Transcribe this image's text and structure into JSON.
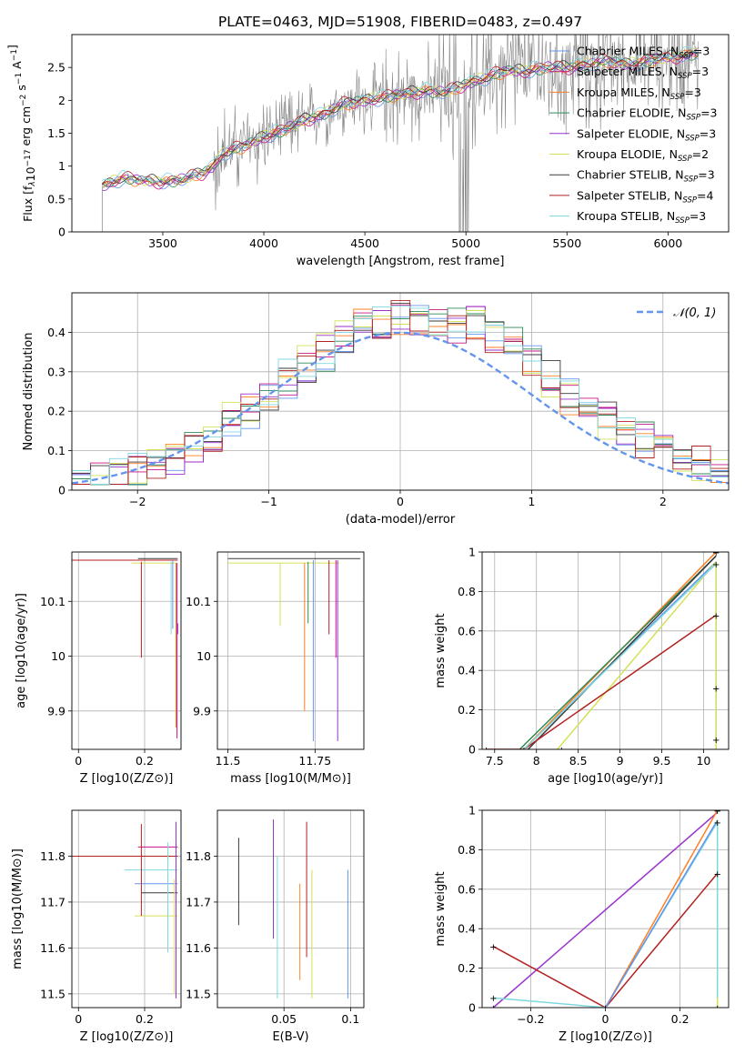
{
  "figure_title": "PLATE=0463, MJD=51908, FIBERID=0483, z=0.497",
  "colors": {
    "Chabrier MILES": "#6495ed",
    "Salpeter MILES": "#c71585",
    "Kroupa MILES": "#ff7f24",
    "Chabrier ELODIE": "#2e8b57",
    "Salpeter ELODIE": "#9932cc",
    "Kroupa ELODIE": "#d4e157",
    "Chabrier STELIB": "#3a3a3a",
    "Salpeter STELIB": "#b22222",
    "Kroupa STELIB": "#7fd8e0",
    "gaussian": "#6495ed",
    "data": "#808080"
  },
  "chart_data": [
    {
      "id": "spectrum",
      "type": "line",
      "title": "PLATE=0463, MJD=51908, FIBERID=0483, z=0.497",
      "xlabel": "wavelength [Angstrom, rest frame]",
      "ylabel": "Flux [f_λ 10^-17 erg cm^-2 s^-1 A^-1]",
      "xlim": [
        3050,
        6300
      ],
      "ylim": [
        0,
        3.0
      ],
      "xticks": [
        3500,
        4000,
        4500,
        5000,
        5500,
        6000
      ],
      "yticks": [
        0.0,
        0.5,
        1.0,
        1.5,
        2.0,
        2.5
      ],
      "legend_position": "upper right",
      "legend": [
        {
          "model": "Chabrier MILES",
          "nssp": "3"
        },
        {
          "model": "Salpeter MILES",
          "nssp": "3"
        },
        {
          "model": "Kroupa MILES",
          "nssp": "3"
        },
        {
          "model": "Chabrier ELODIE",
          "nssp": "3"
        },
        {
          "model": "Salpeter ELODIE",
          "nssp": "3"
        },
        {
          "model": "Kroupa ELODIE",
          "nssp": "2"
        },
        {
          "model": "Chabrier STELIB",
          "nssp": "3"
        },
        {
          "model": "Salpeter STELIB",
          "nssp": "4"
        },
        {
          "model": "Kroupa STELIB",
          "nssp": "3"
        }
      ],
      "nssp_label": "N_SSP",
      "series_continuum": {
        "x": [
          3200,
          3300,
          3400,
          3500,
          3600,
          3700,
          3750,
          3800,
          3900,
          4000,
          4100,
          4200,
          4300,
          4400,
          4500,
          4600,
          4700,
          4800,
          4900,
          5000,
          5100,
          5200,
          5300,
          5400,
          5500,
          5600,
          5700,
          5800,
          5900,
          6000,
          6100,
          6150
        ],
        "y": [
          0.7,
          0.82,
          0.78,
          0.76,
          0.8,
          0.9,
          1.0,
          1.2,
          1.3,
          1.45,
          1.55,
          1.7,
          1.8,
          1.95,
          2.0,
          2.05,
          2.1,
          2.15,
          2.12,
          2.25,
          2.35,
          2.45,
          2.45,
          2.5,
          2.5,
          2.55,
          2.6,
          2.55,
          2.6,
          2.65,
          2.7,
          2.72
        ]
      }
    },
    {
      "id": "residuals",
      "type": "line",
      "xlabel": "(data-model)/error",
      "ylabel": "Normed distribution",
      "xlim": [
        -2.5,
        2.5
      ],
      "ylim": [
        0,
        0.5
      ],
      "xticks": [
        -2,
        -1,
        0,
        1,
        2
      ],
      "yticks": [
        0.0,
        0.1,
        0.2,
        0.3,
        0.4
      ],
      "legend_position": "upper right",
      "legend_label": "𝒩(0, 1)",
      "grid": true
    },
    {
      "id": "age_vs_Z",
      "type": "scatter",
      "xlabel": "Z [log10(Z/Z⊙)]",
      "ylabel": "age  [log10(age/yr)]",
      "xlim": [
        -0.02,
        0.31
      ],
      "ylim": [
        9.83,
        10.19
      ],
      "xticks": [
        0.0,
        0.2
      ],
      "yticks": [
        9.9,
        10.0,
        10.1
      ],
      "grid": true
    },
    {
      "id": "age_vs_mass",
      "type": "scatter",
      "xlabel": "mass [log10(M/M⊙)]",
      "xlim": [
        11.47,
        11.89
      ],
      "ylim": [
        9.83,
        10.19
      ],
      "xticks": [
        11.5,
        11.75
      ],
      "yticks": [
        9.9,
        10.0,
        10.1
      ],
      "grid": true
    },
    {
      "id": "mass_weight_vs_age",
      "type": "line",
      "xlabel": "age  [log10(age/yr)]",
      "ylabel": "mass weight",
      "xlim": [
        7.35,
        10.3
      ],
      "ylim": [
        0,
        1.0
      ],
      "xticks": [
        7.5,
        8.0,
        8.5,
        9.0,
        9.5,
        10.0
      ],
      "yticks": [
        0.0,
        0.2,
        0.4,
        0.6,
        0.8,
        1.0
      ],
      "grid": true
    },
    {
      "id": "mass_vs_Z",
      "type": "scatter",
      "xlabel": "Z [log10(Z/Z⊙)]",
      "ylabel": "mass [log10(M/M⊙)]",
      "xlim": [
        -0.02,
        0.31
      ],
      "ylim": [
        11.47,
        11.9
      ],
      "xticks": [
        0.0,
        0.2
      ],
      "yticks": [
        11.5,
        11.6,
        11.7,
        11.8
      ],
      "grid": true
    },
    {
      "id": "mass_vs_ebv",
      "type": "scatter",
      "xlabel": "E(B-V)",
      "xlim": [
        0.0,
        0.11
      ],
      "ylim": [
        11.47,
        11.9
      ],
      "xticks": [
        0.05,
        0.1
      ],
      "yticks": [
        11.5,
        11.6,
        11.7,
        11.8
      ],
      "grid": true
    },
    {
      "id": "mass_weight_vs_Z",
      "type": "line",
      "xlabel": "Z [log10(Z/Z⊙)]",
      "ylabel": "mass weight",
      "xlim": [
        -0.33,
        0.33
      ],
      "ylim": [
        0,
        1.0
      ],
      "xticks": [
        -0.2,
        0.0,
        0.2
      ],
      "yticks": [
        0.0,
        0.2,
        0.4,
        0.6,
        0.8,
        1.0
      ],
      "grid": true
    }
  ]
}
